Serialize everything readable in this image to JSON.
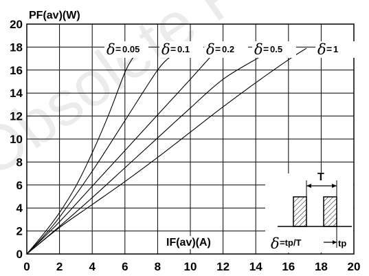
{
  "chart_data": {
    "type": "line",
    "ylabel": "PF(av)(W)",
    "xlabel": "IF(av)(A)",
    "xlim": [
      0,
      20
    ],
    "ylim": [
      0,
      20
    ],
    "xticks": [
      0,
      2,
      4,
      6,
      8,
      10,
      12,
      14,
      16,
      18,
      20
    ],
    "yticks": [
      0,
      2,
      4,
      6,
      8,
      10,
      12,
      14,
      16,
      18,
      20
    ],
    "grid": true,
    "series": [
      {
        "name": "δ = 0.05",
        "delta_symbol": "δ",
        "equals": "=",
        "value": "0.05",
        "points": [
          [
            0,
            0
          ],
          [
            1,
            1.7
          ],
          [
            2,
            3.6
          ],
          [
            3,
            5.9
          ],
          [
            4,
            8.8
          ],
          [
            5,
            12.1
          ],
          [
            6,
            15.8
          ],
          [
            6.5,
            17.1
          ]
        ]
      },
      {
        "name": "δ = 0.1",
        "delta_symbol": "δ",
        "equals": "=",
        "value": "0.1",
        "points": [
          [
            0,
            0
          ],
          [
            1,
            1.5
          ],
          [
            2,
            3.2
          ],
          [
            4,
            7.2
          ],
          [
            6,
            11.6
          ],
          [
            8,
            16.0
          ],
          [
            8.9,
            17.3
          ]
        ]
      },
      {
        "name": "δ = 0.2",
        "delta_symbol": "δ",
        "equals": "=",
        "value": "0.2",
        "points": [
          [
            0,
            0
          ],
          [
            2,
            2.8
          ],
          [
            4,
            5.9
          ],
          [
            6,
            9.0
          ],
          [
            8,
            12.1
          ],
          [
            10,
            15.2
          ],
          [
            11.2,
            17.1
          ]
        ]
      },
      {
        "name": "δ = 0.5",
        "delta_symbol": "δ",
        "equals": "=",
        "value": "0.5",
        "points": [
          [
            0,
            0
          ],
          [
            2,
            2.4
          ],
          [
            4,
            4.9
          ],
          [
            6,
            7.5
          ],
          [
            8,
            10.1
          ],
          [
            10,
            12.7
          ],
          [
            12,
            15.2
          ],
          [
            14.2,
            17.1
          ]
        ]
      },
      {
        "name": "δ = 1",
        "delta_symbol": "δ",
        "equals": "=",
        "value": "1",
        "points": [
          [
            0,
            0
          ],
          [
            2,
            2.3
          ],
          [
            4,
            4.3
          ],
          [
            6,
            6.3
          ],
          [
            8,
            8.4
          ],
          [
            10,
            10.6
          ],
          [
            12,
            12.8
          ],
          [
            14,
            14.9
          ],
          [
            16,
            16.9
          ],
          [
            17.1,
            17.9
          ]
        ]
      }
    ],
    "inset": {
      "period_label": "T",
      "pulse_label": "tp",
      "formula_symbol": "δ",
      "formula_text": "=tp/T"
    },
    "watermark": "Obsolete Pr"
  }
}
